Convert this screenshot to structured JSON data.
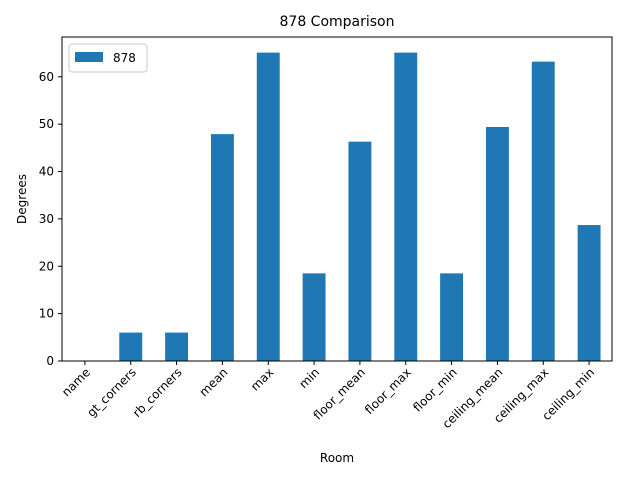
{
  "chart_data": {
    "type": "bar",
    "title": "878 Comparison",
    "xlabel": "Room",
    "ylabel": "Degrees",
    "categories": [
      "name",
      "gt_corners",
      "rb_corners",
      "mean",
      "max",
      "min",
      "floor_mean",
      "floor_max",
      "floor_min",
      "ceiling_mean",
      "ceiling_max",
      "ceiling_min"
    ],
    "series": [
      {
        "name": "878",
        "color": "#1f77b4",
        "values": [
          0,
          6,
          6,
          47.9,
          65.1,
          18.5,
          46.3,
          65.1,
          18.5,
          49.4,
          63.2,
          28.7
        ]
      }
    ],
    "ylim": [
      0,
      68.4
    ],
    "yticks": [
      0,
      10,
      20,
      30,
      40,
      50,
      60
    ],
    "grid": false,
    "legend_position": "top-left"
  }
}
